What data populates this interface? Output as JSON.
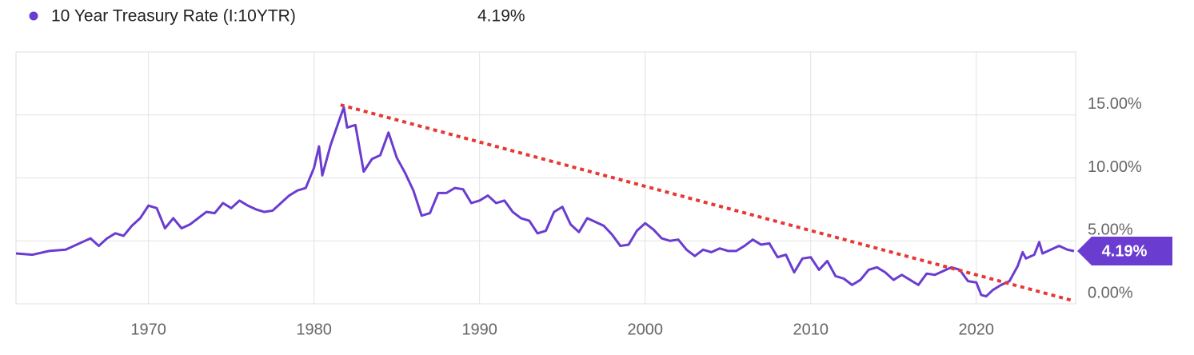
{
  "chart_data": {
    "type": "line",
    "grid": true,
    "xlim": [
      1962,
      2026
    ],
    "xticks": [
      1970,
      1980,
      1990,
      2000,
      2010,
      2020
    ],
    "ylim": [
      0,
      20
    ],
    "yticks": [
      {
        "value": 0,
        "label": "0.00%"
      },
      {
        "value": 5,
        "label": "5.00%"
      },
      {
        "value": 10,
        "label": "10.00%"
      },
      {
        "value": 15,
        "label": "15.00%"
      }
    ],
    "x": [
      1962,
      1963,
      1964,
      1965,
      1966,
      1966.5,
      1967,
      1967.5,
      1968,
      1968.5,
      1969,
      1969.5,
      1970,
      1970.5,
      1971,
      1971.5,
      1972,
      1972.5,
      1973,
      1973.5,
      1974,
      1974.5,
      1975,
      1975.5,
      1976,
      1976.5,
      1977,
      1977.5,
      1978,
      1978.5,
      1979,
      1979.5,
      1980,
      1980.3,
      1980.5,
      1981,
      1981.5,
      1981.8,
      1982,
      1982.5,
      1983,
      1983.5,
      1984,
      1984.5,
      1985,
      1985.5,
      1986,
      1986.5,
      1987,
      1987.5,
      1988,
      1988.5,
      1989,
      1989.5,
      1990,
      1990.5,
      1991,
      1991.5,
      1992,
      1992.5,
      1993,
      1993.5,
      1994,
      1994.5,
      1995,
      1995.5,
      1996,
      1996.5,
      1997,
      1997.5,
      1998,
      1998.5,
      1999,
      1999.5,
      2000,
      2000.5,
      2001,
      2001.5,
      2002,
      2002.5,
      2003,
      2003.5,
      2004,
      2004.5,
      2005,
      2005.5,
      2006,
      2006.5,
      2007,
      2007.5,
      2008,
      2008.5,
      2009,
      2009.5,
      2010,
      2010.5,
      2011,
      2011.5,
      2012,
      2012.5,
      2013,
      2013.5,
      2014,
      2014.5,
      2015,
      2015.5,
      2016,
      2016.5,
      2017,
      2017.5,
      2018,
      2018.5,
      2019,
      2019.5,
      2020,
      2020.3,
      2020.6,
      2021,
      2021.5,
      2022,
      2022.5,
      2022.8,
      2023,
      2023.5,
      2023.8,
      2024,
      2024.5,
      2025,
      2025.5,
      2025.9
    ],
    "series": [
      {
        "name": "10 Year Treasury Rate (I:10YTR)",
        "color": "#6a3cd0",
        "last_value": 4.19,
        "last_value_label": "4.19%",
        "values": [
          4.0,
          3.9,
          4.2,
          4.3,
          4.9,
          5.2,
          4.6,
          5.2,
          5.6,
          5.4,
          6.2,
          6.8,
          7.8,
          7.6,
          6.0,
          6.8,
          6.0,
          6.3,
          6.8,
          7.3,
          7.2,
          8.0,
          7.6,
          8.2,
          7.8,
          7.5,
          7.3,
          7.4,
          8.0,
          8.6,
          9.0,
          9.2,
          10.8,
          12.5,
          10.2,
          12.6,
          14.5,
          15.6,
          14.0,
          14.2,
          10.5,
          11.5,
          11.8,
          13.6,
          11.6,
          10.4,
          9.0,
          7.0,
          7.2,
          8.8,
          8.8,
          9.2,
          9.1,
          8.0,
          8.2,
          8.6,
          8.0,
          8.2,
          7.3,
          6.8,
          6.6,
          5.6,
          5.8,
          7.3,
          7.7,
          6.3,
          5.7,
          6.8,
          6.5,
          6.2,
          5.5,
          4.6,
          4.7,
          5.8,
          6.4,
          5.9,
          5.2,
          5.0,
          5.1,
          4.3,
          3.8,
          4.3,
          4.1,
          4.4,
          4.2,
          4.2,
          4.6,
          5.1,
          4.7,
          4.8,
          3.7,
          3.9,
          2.5,
          3.6,
          3.7,
          2.7,
          3.4,
          2.2,
          2.0,
          1.5,
          1.9,
          2.7,
          2.9,
          2.5,
          1.9,
          2.3,
          1.9,
          1.5,
          2.4,
          2.3,
          2.6,
          2.9,
          2.7,
          1.8,
          1.7,
          0.7,
          0.6,
          1.1,
          1.5,
          1.8,
          3.0,
          4.1,
          3.6,
          3.9,
          4.9,
          4.0,
          4.3,
          4.6,
          4.3,
          4.19
        ]
      }
    ],
    "trend_line": {
      "color": "#e53935",
      "x": [
        1981.6,
        2025.7
      ],
      "values": [
        15.8,
        0.3
      ]
    }
  }
}
